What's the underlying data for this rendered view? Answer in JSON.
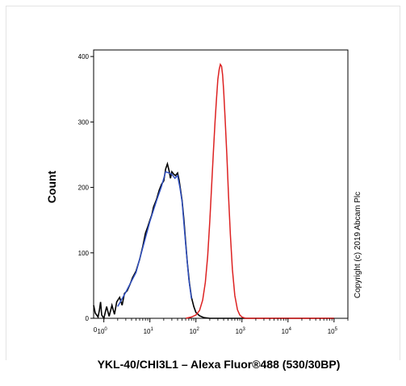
{
  "chart_data": {
    "type": "line",
    "xlabel": "YKL-40/CHI3L1 – Alexa Fluor®488 (530/30BP)",
    "ylabel": "Count",
    "x_scale": "log",
    "xlim": [
      0.6,
      200000
    ],
    "ylim": [
      0,
      410
    ],
    "y_ticks": [
      0,
      100,
      200,
      300,
      400
    ],
    "x_ticks": [
      {
        "value": 1,
        "base": "10",
        "exp": "0"
      },
      {
        "value": 10,
        "base": "10",
        "exp": "1"
      },
      {
        "value": 100,
        "base": "10",
        "exp": "2"
      },
      {
        "value": 1000,
        "base": "10",
        "exp": "3"
      },
      {
        "value": 10000,
        "base": "10",
        "exp": "4"
      },
      {
        "value": 100000,
        "base": "10",
        "exp": "5"
      }
    ],
    "x_tick_extra_label": {
      "value": 0.6,
      "text": "0"
    },
    "grid": false,
    "annotation": "Copyright (c) 2019 Abcam Plc",
    "series": [
      {
        "color": "#000000",
        "points": [
          [
            0.6,
            20
          ],
          [
            0.65,
            8
          ],
          [
            0.75,
            2
          ],
          [
            0.8,
            12
          ],
          [
            0.85,
            25
          ],
          [
            0.9,
            5
          ],
          [
            1.0,
            0
          ],
          [
            1.15,
            18
          ],
          [
            1.3,
            3
          ],
          [
            1.5,
            20
          ],
          [
            1.7,
            6
          ],
          [
            1.9,
            25
          ],
          [
            2.2,
            32
          ],
          [
            2.5,
            20
          ],
          [
            2.8,
            38
          ],
          [
            3.2,
            42
          ],
          [
            3.7,
            52
          ],
          [
            4.2,
            62
          ],
          [
            5,
            72
          ],
          [
            6,
            90
          ],
          [
            7,
            110
          ],
          [
            8,
            130
          ],
          [
            9,
            140
          ],
          [
            10,
            150
          ],
          [
            11,
            158
          ],
          [
            12,
            170
          ],
          [
            14,
            182
          ],
          [
            16,
            196
          ],
          [
            18,
            205
          ],
          [
            20,
            210
          ],
          [
            22,
            228
          ],
          [
            24,
            236
          ],
          [
            26,
            226
          ],
          [
            28,
            214
          ],
          [
            30,
            224
          ],
          [
            33,
            220
          ],
          [
            36,
            218
          ],
          [
            40,
            222
          ],
          [
            43,
            212
          ],
          [
            46,
            198
          ],
          [
            50,
            180
          ],
          [
            55,
            150
          ],
          [
            60,
            115
          ],
          [
            65,
            85
          ],
          [
            72,
            55
          ],
          [
            80,
            32
          ],
          [
            90,
            18
          ],
          [
            100,
            9
          ],
          [
            120,
            4
          ],
          [
            150,
            1
          ],
          [
            200,
            0
          ],
          [
            100000,
            0
          ]
        ]
      },
      {
        "color": "#3050c0",
        "points": [
          [
            2,
            18
          ],
          [
            3,
            40
          ],
          [
            5,
            70
          ],
          [
            7,
            108
          ],
          [
            10,
            148
          ],
          [
            14,
            180
          ],
          [
            18,
            202
          ],
          [
            22,
            224
          ],
          [
            26,
            222
          ],
          [
            30,
            220
          ],
          [
            35,
            214
          ],
          [
            40,
            218
          ],
          [
            45,
            200
          ],
          [
            50,
            178
          ],
          [
            60,
            112
          ],
          [
            70,
            60
          ],
          [
            80,
            30
          ]
        ]
      },
      {
        "color": "#dd2222",
        "points": [
          [
            60,
            0
          ],
          [
            80,
            2
          ],
          [
            100,
            5
          ],
          [
            120,
            12
          ],
          [
            140,
            28
          ],
          [
            160,
            55
          ],
          [
            180,
            95
          ],
          [
            200,
            148
          ],
          [
            220,
            205
          ],
          [
            240,
            255
          ],
          [
            260,
            300
          ],
          [
            280,
            335
          ],
          [
            300,
            365
          ],
          [
            320,
            380
          ],
          [
            340,
            388
          ],
          [
            360,
            385
          ],
          [
            380,
            372
          ],
          [
            400,
            348
          ],
          [
            430,
            305
          ],
          [
            470,
            248
          ],
          [
            510,
            188
          ],
          [
            560,
            128
          ],
          [
            620,
            75
          ],
          [
            700,
            35
          ],
          [
            800,
            13
          ],
          [
            900,
            5
          ],
          [
            1000,
            2
          ],
          [
            1200,
            0
          ],
          [
            100000,
            0
          ]
        ]
      }
    ]
  }
}
